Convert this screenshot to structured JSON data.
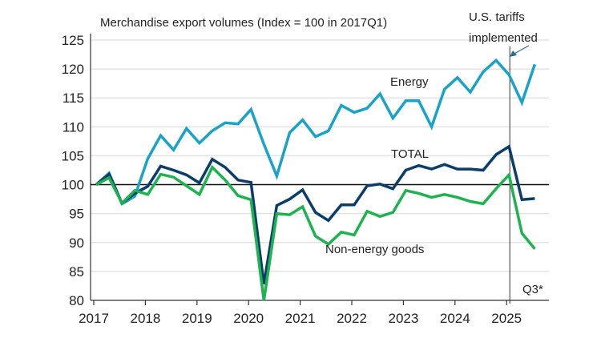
{
  "chart_data": {
    "type": "line",
    "title": "Merchandise export volumes (Index = 100 in 2017Q1)",
    "xlabel": "",
    "ylabel": "",
    "ylim": [
      80,
      125
    ],
    "yticks": [
      80,
      85,
      90,
      95,
      100,
      105,
      110,
      115,
      120,
      125
    ],
    "xticks": [
      "2017",
      "2018",
      "2019",
      "2020",
      "2021",
      "2022",
      "2023",
      "2024",
      "2025"
    ],
    "x_start": "2017Q1",
    "x_end": "2025Q3",
    "grid": true,
    "reference_line": 100,
    "annotations": {
      "event": "U.S. tariffs implemented",
      "event_date": "2025Q1",
      "last_point_note": "Q3*"
    },
    "series": [
      {
        "name": "Energy",
        "color": "#1aa3c8",
        "values": [
          100,
          102,
          96.7,
          98,
          104.5,
          108.5,
          106,
          109.7,
          107.2,
          109.3,
          110.7,
          110.5,
          113,
          107,
          101.5,
          109,
          111.2,
          108.3,
          109.3,
          113.7,
          112.5,
          113.2,
          115.7,
          111.5,
          114.5,
          114.5,
          110,
          116.5,
          118.5,
          116,
          119.5,
          121.5,
          119,
          114.2,
          120.8
        ]
      },
      {
        "name": "TOTAL",
        "color": "#0b3d6b",
        "values": [
          100,
          101.8,
          96.8,
          98.5,
          99.7,
          103.2,
          102.5,
          101.7,
          100.3,
          104.4,
          103,
          100.8,
          100.4,
          82.8,
          96.4,
          97.5,
          99.1,
          95.2,
          93.8,
          96.5,
          96.5,
          99.8,
          100.1,
          99.3,
          102.5,
          103.3,
          102.7,
          103.5,
          102.7,
          102.7,
          102.5,
          105.2,
          106.6,
          97.4,
          97.6
        ]
      },
      {
        "name": "Non-energy goods",
        "color": "#1db34f",
        "values": [
          100,
          101.2,
          96.8,
          99,
          98.3,
          101.8,
          101.3,
          99.8,
          98.3,
          103,
          100.8,
          98.1,
          97.4,
          80,
          95,
          94.8,
          96.2,
          91.1,
          89.7,
          91.8,
          91.3,
          95.4,
          94.5,
          95.2,
          99,
          98.5,
          97.8,
          98.3,
          97.8,
          97.1,
          96.7,
          99.3,
          101.7,
          91.6,
          88.9
        ]
      }
    ]
  }
}
